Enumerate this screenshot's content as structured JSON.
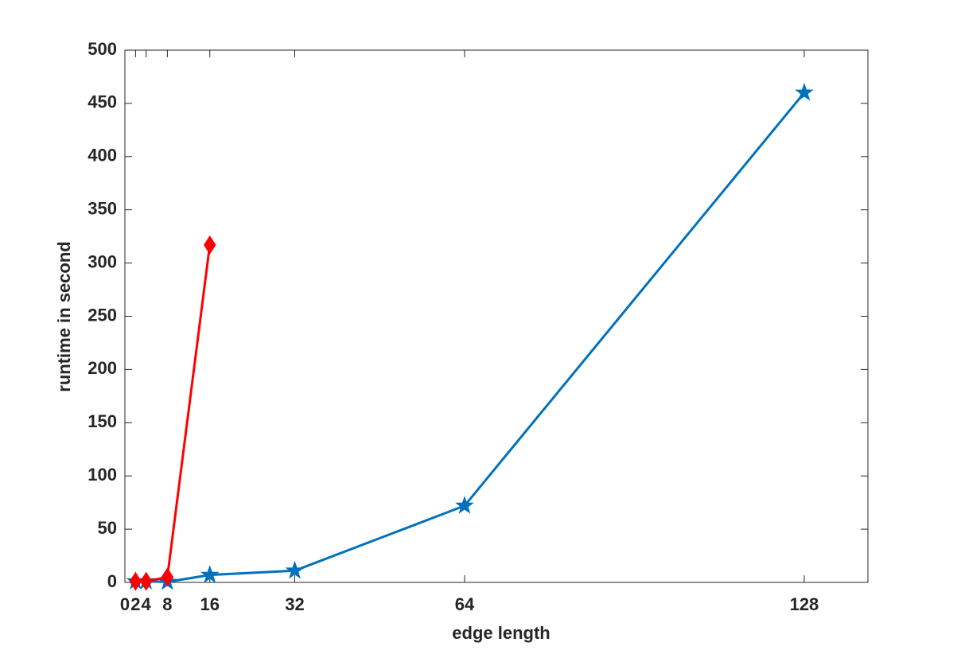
{
  "chart_data": {
    "type": "line",
    "xlabel": "edge length",
    "ylabel": "runtime in second",
    "xlim": [
      0,
      140
    ],
    "ylim": [
      0,
      500
    ],
    "xticks": [
      0,
      2,
      4,
      8,
      16,
      32,
      64,
      128
    ],
    "yticks": [
      0,
      50,
      100,
      150,
      200,
      250,
      300,
      350,
      400,
      450,
      500
    ],
    "grid": false,
    "series": [
      {
        "color": "#0072bd",
        "marker": "star",
        "x": [
          2,
          4,
          8,
          16,
          32,
          64,
          128
        ],
        "values": [
          1,
          1,
          0.5,
          7,
          11,
          72,
          460
        ]
      },
      {
        "color": "#ff0000",
        "marker": "diamond",
        "x": [
          2,
          4,
          8,
          16
        ],
        "values": [
          1,
          1,
          5,
          317
        ]
      }
    ]
  }
}
